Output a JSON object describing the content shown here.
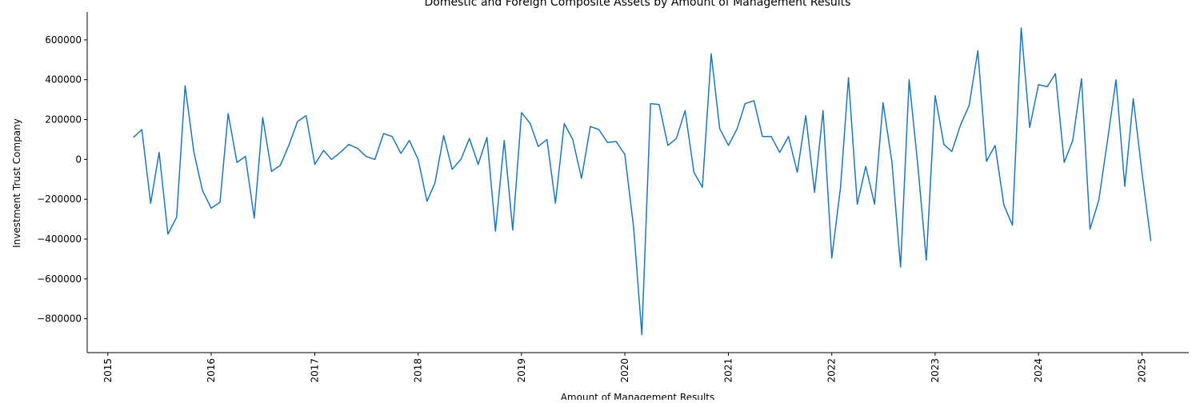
{
  "chart_data": {
    "type": "line",
    "title": "Domestic and Foreign Composite Assets by Amount of Management Results",
    "xlabel": "Amount of Management Results",
    "ylabel": "Investment Trust Company",
    "xlim": [
      "2014-10-20",
      "2025-06-15"
    ],
    "ylim": [
      -970000,
      740000
    ],
    "x_ticks": [
      "2015-01-01",
      "2016-01-01",
      "2017-01-01",
      "2018-01-01",
      "2019-01-01",
      "2020-01-01",
      "2021-01-01",
      "2022-01-01",
      "2023-01-01",
      "2024-01-01",
      "2025-01-01"
    ],
    "x_tick_labels": [
      "2015",
      "2016",
      "2017",
      "2018",
      "2019",
      "2020",
      "2021",
      "2022",
      "2023",
      "2024",
      "2025"
    ],
    "y_ticks": [
      -800000,
      -600000,
      -400000,
      -200000,
      0,
      200000,
      400000,
      600000
    ],
    "y_tick_labels": [
      "−800000",
      "−600000",
      "−400000",
      "−200000",
      "0",
      "200000",
      "400000",
      "600000"
    ],
    "grid": false,
    "line_color": "#1f77b4",
    "series": [
      {
        "x": [
          "2015-04-01",
          "2015-05-01",
          "2015-06-01",
          "2015-07-01",
          "2015-08-01",
          "2015-09-01",
          "2015-10-01",
          "2015-11-01",
          "2015-12-01",
          "2016-01-01",
          "2016-02-01",
          "2016-03-01",
          "2016-04-01",
          "2016-05-01",
          "2016-06-01",
          "2016-07-01",
          "2016-08-01",
          "2016-09-01",
          "2016-10-01",
          "2016-11-01",
          "2016-12-01",
          "2017-01-01",
          "2017-02-01",
          "2017-03-01",
          "2017-04-01",
          "2017-05-01",
          "2017-06-01",
          "2017-07-01",
          "2017-08-01",
          "2017-09-01",
          "2017-10-01",
          "2017-11-01",
          "2017-12-01",
          "2018-01-01",
          "2018-02-01",
          "2018-03-01",
          "2018-04-01",
          "2018-05-01",
          "2018-06-01",
          "2018-07-01",
          "2018-08-01",
          "2018-09-01",
          "2018-10-01",
          "2018-11-01",
          "2018-12-01",
          "2019-01-01",
          "2019-02-01",
          "2019-03-01",
          "2019-04-01",
          "2019-05-01",
          "2019-06-01",
          "2019-07-01",
          "2019-08-01",
          "2019-09-01",
          "2019-10-01",
          "2019-11-01",
          "2019-12-01",
          "2020-01-01",
          "2020-02-01",
          "2020-03-01",
          "2020-04-01",
          "2020-05-01",
          "2020-06-01",
          "2020-07-01",
          "2020-08-01",
          "2020-09-01",
          "2020-10-01",
          "2020-11-01",
          "2020-12-01",
          "2021-01-01",
          "2021-02-01",
          "2021-03-01",
          "2021-04-01",
          "2021-05-01",
          "2021-06-01",
          "2021-07-01",
          "2021-08-01",
          "2021-09-01",
          "2021-10-01",
          "2021-11-01",
          "2021-12-01",
          "2022-01-01",
          "2022-02-01",
          "2022-03-01",
          "2022-04-01",
          "2022-05-01",
          "2022-06-01",
          "2022-07-01",
          "2022-08-01",
          "2022-09-01",
          "2022-10-01",
          "2022-11-01",
          "2022-12-01",
          "2023-01-01",
          "2023-02-01",
          "2023-03-01",
          "2023-04-01",
          "2023-05-01",
          "2023-06-01",
          "2023-07-01",
          "2023-08-01",
          "2023-09-01",
          "2023-10-01",
          "2023-11-01",
          "2023-12-01",
          "2024-01-01",
          "2024-02-01",
          "2024-03-01",
          "2024-04-01",
          "2024-05-01",
          "2024-06-01",
          "2024-07-01",
          "2024-08-01",
          "2024-09-01",
          "2024-10-01",
          "2024-11-01",
          "2024-12-01",
          "2025-01-01",
          "2025-02-01"
        ],
        "values": [
          110000,
          150000,
          -220000,
          35000,
          -375000,
          -290000,
          370000,
          35000,
          -155000,
          -245000,
          -215000,
          230000,
          -15000,
          15000,
          -295000,
          210000,
          -60000,
          -30000,
          70000,
          190000,
          220000,
          -25000,
          45000,
          0,
          35000,
          75000,
          55000,
          15000,
          0,
          130000,
          115000,
          30000,
          95000,
          0,
          -210000,
          -120000,
          120000,
          -50000,
          0,
          105000,
          -25000,
          110000,
          -360000,
          95000,
          -355000,
          235000,
          180000,
          65000,
          100000,
          -220000,
          180000,
          100000,
          -95000,
          165000,
          150000,
          85000,
          90000,
          25000,
          -340000,
          -880000,
          280000,
          275000,
          70000,
          105000,
          245000,
          -65000,
          -140000,
          530000,
          155000,
          70000,
          155000,
          280000,
          295000,
          115000,
          115000,
          35000,
          115000,
          -65000,
          220000,
          -165000,
          245000,
          -495000,
          -140000,
          410000,
          -225000,
          -35000,
          -225000,
          285000,
          -10000,
          -540000,
          400000,
          -30000,
          -505000,
          320000,
          75000,
          40000,
          175000,
          270000,
          545000,
          -10000,
          70000,
          -230000,
          -330000,
          660000,
          160000,
          375000,
          365000,
          430000,
          -15000,
          95000,
          405000,
          -350000,
          -205000,
          95000,
          400000,
          -135000,
          305000,
          -70000,
          -410000
        ]
      }
    ]
  }
}
